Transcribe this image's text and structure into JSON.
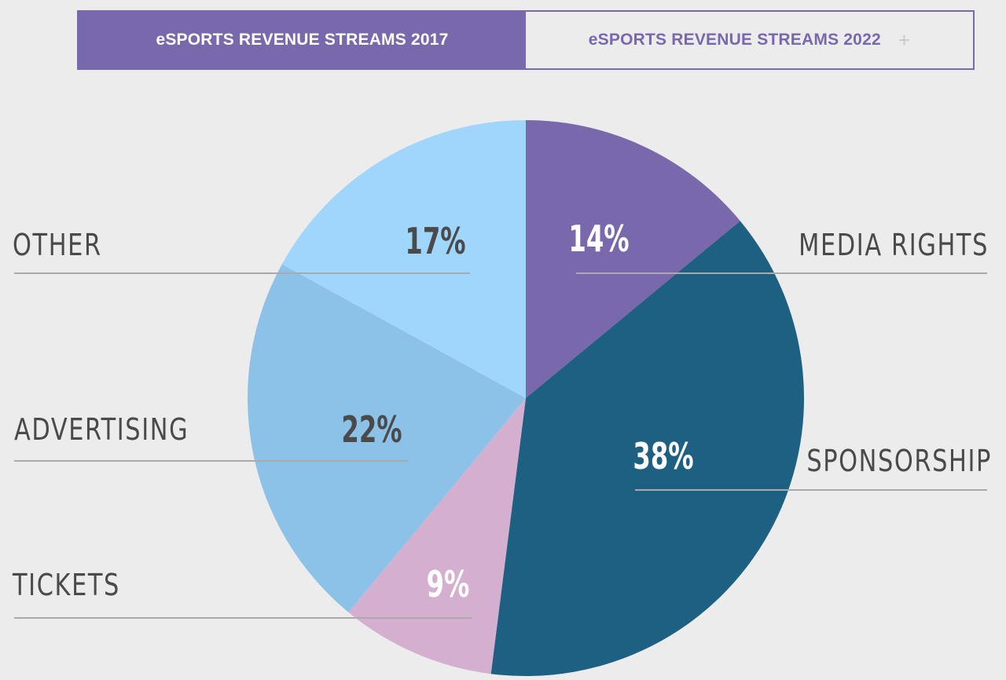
{
  "tabs": [
    {
      "label": "eSPORTS REVENUE STREAMS 2017",
      "active": true
    },
    {
      "label": "eSPORTS REVENUE STREAMS 2022",
      "active": false,
      "icon": "plus-icon"
    }
  ],
  "colors": {
    "accent": "#7a68ad",
    "media_rights": "#7a68ad",
    "sponsorship": "#1d6082",
    "tickets": "#d5afd0",
    "advertising": "#8cc2e8",
    "other": "#a0d6fb",
    "label_text": "#4a4a4a",
    "leader_line": "#aaaaaa"
  },
  "chart_data": {
    "type": "pie",
    "title": "eSPORTS REVENUE STREAMS 2017",
    "start_angle_deg": 0,
    "direction": "clockwise",
    "slices": [
      {
        "name": "MEDIA RIGHTS",
        "value": 14,
        "label": "14%",
        "color": "#7a68ad",
        "value_color": "#ffffff",
        "side": "right"
      },
      {
        "name": "SPONSORSHIP",
        "value": 38,
        "label": "38%",
        "color": "#1d6082",
        "value_color": "#ffffff",
        "side": "right"
      },
      {
        "name": "TICKETS",
        "value": 9,
        "label": "9%",
        "color": "#d5afd0",
        "value_color": "#ffffff",
        "side": "left"
      },
      {
        "name": "ADVERTISING",
        "value": 22,
        "label": "22%",
        "color": "#8cc2e8",
        "value_color": "#4a4a4a",
        "side": "left"
      },
      {
        "name": "OTHER",
        "value": 17,
        "label": "17%",
        "color": "#a0d6fb",
        "value_color": "#4a4a4a",
        "side": "left"
      }
    ]
  }
}
